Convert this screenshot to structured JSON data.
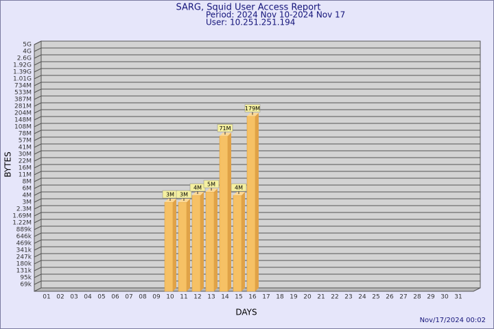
{
  "chart_data": {
    "type": "bar3d",
    "title": "SARG, Squid User Access Report",
    "subtitle": [
      "Period: 2024 Nov 10-2024 Nov 17",
      "User: 10.251.251.194"
    ],
    "x_label": "DAYS",
    "y_label": "BYTES",
    "footer": "Nov/17/2024 00:02",
    "categories": [
      "01",
      "02",
      "03",
      "04",
      "05",
      "06",
      "07",
      "08",
      "09",
      "10",
      "11",
      "12",
      "13",
      "14",
      "15",
      "16",
      "17",
      "18",
      "19",
      "20",
      "21",
      "22",
      "23",
      "24",
      "25",
      "26",
      "27",
      "28",
      "29",
      "30",
      "31"
    ],
    "values": [
      null,
      null,
      null,
      null,
      null,
      null,
      null,
      null,
      null,
      3000000,
      3000000,
      4000000,
      5000000,
      71000000,
      4000000,
      179000000,
      null,
      null,
      null,
      null,
      null,
      null,
      null,
      null,
      null,
      null,
      null,
      null,
      null,
      null,
      null
    ],
    "value_labels": [
      null,
      null,
      null,
      null,
      null,
      null,
      null,
      null,
      null,
      "3M",
      "3M",
      "4M",
      "5M",
      "71M",
      "4M",
      "179M",
      null,
      null,
      null,
      null,
      null,
      null,
      null,
      null,
      null,
      null,
      null,
      null,
      null,
      null,
      null
    ],
    "color": "#f6c165",
    "ylim": [
      0,
      5000000000
    ],
    "yticks": [
      {
        "value": 69000,
        "label": "69k"
      },
      {
        "value": 95000,
        "label": "95k"
      },
      {
        "value": 131000,
        "label": "131k"
      },
      {
        "value": 180000,
        "label": "180k"
      },
      {
        "value": 247000,
        "label": "247k"
      },
      {
        "value": 341000,
        "label": "341k"
      },
      {
        "value": 469000,
        "label": "469k"
      },
      {
        "value": 646000,
        "label": "646k"
      },
      {
        "value": 889000,
        "label": "889k"
      },
      {
        "value": 1220000,
        "label": "1.22M"
      },
      {
        "value": 1690000,
        "label": "1.69M"
      },
      {
        "value": 2300000,
        "label": "2.3M"
      },
      {
        "value": 3000000,
        "label": "3M"
      },
      {
        "value": 4000000,
        "label": "4M"
      },
      {
        "value": 6000000,
        "label": "6M"
      },
      {
        "value": 8000000,
        "label": "8M"
      },
      {
        "value": 11000000,
        "label": "11M"
      },
      {
        "value": 16000000,
        "label": "16M"
      },
      {
        "value": 22000000,
        "label": "22M"
      },
      {
        "value": 30000000,
        "label": "30M"
      },
      {
        "value": 41000000,
        "label": "41M"
      },
      {
        "value": 57000000,
        "label": "57M"
      },
      {
        "value": 78000000,
        "label": "78M"
      },
      {
        "value": 108000000,
        "label": "108M"
      },
      {
        "value": 148000000,
        "label": "148M"
      },
      {
        "value": 204000000,
        "label": "204M"
      },
      {
        "value": 281000000,
        "label": "281M"
      },
      {
        "value": 387000000,
        "label": "387M"
      },
      {
        "value": 533000000,
        "label": "533M"
      },
      {
        "value": 734000000,
        "label": "734M"
      },
      {
        "value": 1010000000,
        "label": "1.01G"
      },
      {
        "value": 1390000000,
        "label": "1.39G"
      },
      {
        "value": 1920000000,
        "label": "1.92G"
      },
      {
        "value": 2600000000,
        "label": "2.6G"
      },
      {
        "value": 4000000000,
        "label": "4G"
      },
      {
        "value": 5000000000,
        "label": "5G"
      }
    ],
    "grid": true
  }
}
